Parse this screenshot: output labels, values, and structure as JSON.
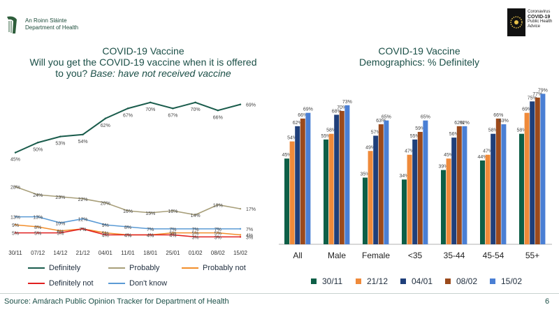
{
  "header": {
    "dept_line1": "An Roinn Sláinte",
    "dept_line2": "Department of Health",
    "advice_line1": "Coronavirus",
    "advice_line2": "COVID-19",
    "advice_line3": "Public Health",
    "advice_line4": "Advice"
  },
  "footer": {
    "source": "Source: Amárach Public Opinion Tracker for Department of Health",
    "page": "6"
  },
  "colors": {
    "definitely": "#1a5c4c",
    "probably": "#a89f7a",
    "probably_not": "#f28e2b",
    "definitely_not": "#e02020",
    "dont_know": "#5b9bd5",
    "b_3011": "#0e5f47",
    "b_2112": "#ef8a3a",
    "b_0401": "#1f3f7a",
    "b_0802": "#9b4a1c",
    "b_1502": "#4a7fd4"
  },
  "chart_data": [
    {
      "type": "line",
      "title": "COVID-19 Vaccine",
      "subtitle": "Will you get the COVID-19 vaccine when it is offered to you?",
      "subtitle_emphasis": "Base: have not received vaccine",
      "x": [
        "30/11",
        "07/12",
        "14/12",
        "21/12",
        "04/01",
        "11/01",
        "18/01",
        "25/01",
        "01/02",
        "08/02",
        "15/02"
      ],
      "ylim": [
        0,
        80
      ],
      "series": [
        {
          "name": "Definitely",
          "values": [
            45,
            50,
            53,
            54,
            62,
            67,
            70,
            67,
            70,
            66,
            69
          ],
          "labels": [
            "45%",
            "50%",
            "53%",
            "54%",
            "62%",
            "67%",
            "70%",
            "67%",
            "70%",
            "66%",
            "69%"
          ]
        },
        {
          "name": "Probably",
          "values": [
            28,
            24,
            23,
            22,
            20,
            16,
            15,
            16,
            14,
            19,
            17
          ],
          "labels": [
            "28%",
            "24%",
            "23%",
            "22%",
            "20%",
            "16%",
            "15%",
            "16%",
            "14%",
            "19%",
            "17%"
          ]
        },
        {
          "name": "Probably not",
          "values": [
            9,
            8,
            6,
            7,
            5,
            4,
            4,
            5,
            5,
            5,
            4
          ],
          "labels": [
            "9%",
            "8%",
            "6%",
            "7%",
            "5%",
            "4%",
            "4%",
            "5%",
            "5%",
            "5%",
            "4%"
          ]
        },
        {
          "name": "Definitely not",
          "values": [
            5,
            5,
            5,
            7,
            4,
            4,
            4,
            4,
            3,
            3,
            3
          ],
          "labels": [
            "5%",
            "5%",
            "5%",
            "7%",
            "4%",
            "4%",
            "4%",
            "4%",
            "3%",
            "3%",
            "3%"
          ]
        },
        {
          "name": "Don't know",
          "values": [
            13,
            13,
            10,
            12,
            9,
            8,
            7,
            7,
            7,
            7,
            7
          ],
          "labels": [
            "13%",
            "13%",
            "10%",
            "12%",
            "9%",
            "8%",
            "7%",
            "7%",
            "7%",
            "7%",
            "7%"
          ]
        }
      ]
    },
    {
      "type": "bar",
      "title": "COVID-19 Vaccine",
      "subtitle": "Demographics: % Definitely",
      "categories": [
        "All",
        "Male",
        "Female",
        "<35",
        "35-44",
        "45-54",
        "55+"
      ],
      "ylim": [
        0,
        85
      ],
      "series": [
        {
          "name": "30/11",
          "values": [
            45,
            55,
            35,
            34,
            39,
            44,
            58
          ],
          "labels": [
            "45%",
            "55%",
            "35%",
            "34%",
            "39%",
            "44%",
            "58%"
          ]
        },
        {
          "name": "21/12",
          "values": [
            54,
            58,
            49,
            47,
            45,
            47,
            69
          ],
          "labels": [
            "54%",
            "58%",
            "49%",
            "47%",
            "45%",
            "47%",
            "69%"
          ]
        },
        {
          "name": "04/01",
          "values": [
            62,
            68,
            57,
            55,
            56,
            58,
            75
          ],
          "labels": [
            "62%",
            "68%",
            "57%",
            "55%",
            "56%",
            "58%",
            "75%"
          ]
        },
        {
          "name": "08/02",
          "values": [
            66,
            70,
            63,
            59,
            62,
            66,
            77
          ],
          "labels": [
            "66%",
            "70%",
            "63%",
            "59%",
            "62%",
            "66%",
            "77%"
          ]
        },
        {
          "name": "15/02",
          "values": [
            69,
            73,
            65,
            65,
            62,
            63,
            79
          ],
          "labels": [
            "69%",
            "73%",
            "65%",
            "65%",
            "62%",
            "63%",
            "79%"
          ]
        }
      ]
    }
  ]
}
